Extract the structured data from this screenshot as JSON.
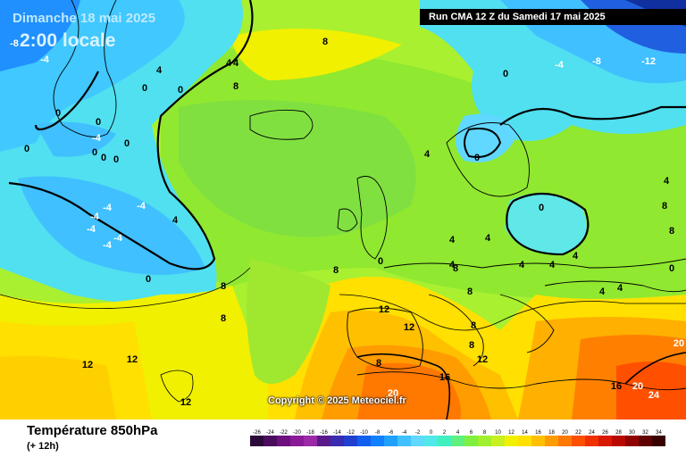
{
  "header": {
    "date": "Dimanche 18 mai 2025",
    "time": "2:00 locale",
    "run": "Run CMA 12 Z du Samedi 17 mai 2025"
  },
  "copyright": "Copyright © 2025 Meteociel.fr",
  "footer": {
    "title": "Température 850hPa",
    "subtitle": "(+ 12h)"
  },
  "scale": {
    "ticks": [
      "-26",
      "-24",
      "-22",
      "-20",
      "-18",
      "-16",
      "-14",
      "-12",
      "-10",
      "-8",
      "-6",
      "-4",
      "-2",
      "0",
      "2",
      "4",
      "6",
      "8",
      "10",
      "12",
      "14",
      "16",
      "18",
      "20",
      "22",
      "24",
      "26",
      "28",
      "30",
      "32",
      "34"
    ],
    "colors": [
      "#2a0838",
      "#4a0c5c",
      "#6e1080",
      "#8a1a98",
      "#9c2aa8",
      "#5a1a8c",
      "#3a2cb0",
      "#2040d0",
      "#1060f0",
      "#1080ff",
      "#20a0ff",
      "#40c0ff",
      "#60d8ff",
      "#50e8e8",
      "#40f0c0",
      "#60f080",
      "#80f040",
      "#a0f030",
      "#c8f020",
      "#f0f000",
      "#ffe000",
      "#ffc000",
      "#ff9c00",
      "#ff7800",
      "#ff5000",
      "#f03000",
      "#d81800",
      "#b80800",
      "#900000",
      "#600000",
      "#380000"
    ]
  },
  "map_labels": [
    {
      "t": "-8"
    },
    {
      "t": "-4"
    },
    {
      "t": "0"
    },
    {
      "t": "0"
    },
    {
      "t": "0"
    },
    {
      "t": "4"
    },
    {
      "t": "4"
    },
    {
      "t": "0"
    },
    {
      "t": "8"
    },
    {
      "t": "4"
    },
    {
      "t": "8"
    },
    {
      "t": "-4"
    },
    {
      "t": "0"
    },
    {
      "t": "0"
    },
    {
      "t": "0"
    },
    {
      "t": "0"
    },
    {
      "t": "-4"
    },
    {
      "t": "-4"
    },
    {
      "t": "-4"
    },
    {
      "t": "-4"
    },
    {
      "t": "-4"
    },
    {
      "t": "-4"
    },
    {
      "t": "4"
    },
    {
      "t": "0"
    },
    {
      "t": "0"
    },
    {
      "t": "8"
    },
    {
      "t": "8"
    },
    {
      "t": "-4"
    },
    {
      "t": "-8"
    },
    {
      "t": "-12"
    },
    {
      "t": "0"
    },
    {
      "t": "4"
    },
    {
      "t": "4"
    },
    {
      "t": "0"
    },
    {
      "t": "0"
    },
    {
      "t": "8"
    },
    {
      "t": "4"
    },
    {
      "t": "4"
    },
    {
      "t": "4"
    },
    {
      "t": "4"
    },
    {
      "t": "8"
    },
    {
      "t": "0"
    },
    {
      "t": "4"
    },
    {
      "t": "4"
    },
    {
      "t": "4"
    },
    {
      "t": "8"
    },
    {
      "t": "4"
    },
    {
      "t": "0"
    },
    {
      "t": "8"
    },
    {
      "t": "12"
    },
    {
      "t": "12"
    },
    {
      "t": "8"
    },
    {
      "t": "8"
    },
    {
      "t": "12"
    },
    {
      "t": "16"
    },
    {
      "t": "20"
    },
    {
      "t": "16"
    },
    {
      "t": "20"
    },
    {
      "t": "24"
    },
    {
      "t": "20"
    },
    {
      "t": "12"
    },
    {
      "t": "12"
    },
    {
      "t": "12"
    },
    {
      "t": "8"
    },
    {
      "t": "8"
    }
  ]
}
